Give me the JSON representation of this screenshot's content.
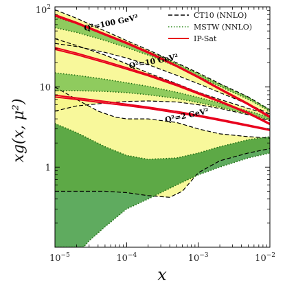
{
  "chart_data": {
    "type": "line",
    "title": "",
    "xlabel": "x",
    "ylabel": "xg(x, μ²)",
    "x_scale": "log",
    "y_scale": "log",
    "xlim": [
      1e-05,
      0.01
    ],
    "ylim": [
      0.1,
      100
    ],
    "x_ticks": [
      {
        "value": 1e-05,
        "base": "10",
        "exp": "−5"
      },
      {
        "value": 0.0001,
        "base": "10",
        "exp": "−4"
      },
      {
        "value": 0.001,
        "base": "10",
        "exp": "−3"
      },
      {
        "value": 0.01,
        "base": "10",
        "exp": "−2"
      }
    ],
    "y_ticks": [
      {
        "value": 1,
        "label": "1"
      },
      {
        "value": 10,
        "label": "10"
      },
      {
        "value": 100,
        "label": "10",
        "exp": "2"
      }
    ],
    "grid": false,
    "legend_position": "top-right",
    "legend": [
      {
        "label": "CT10 (NNLO)",
        "style": "dashed",
        "color": "#000000"
      },
      {
        "label": "MSTW (NNLO)",
        "style": "dotted",
        "color": "#2e8b1e"
      },
      {
        "label": "IP-Sat",
        "style": "solid",
        "color": "#e8001c"
      }
    ],
    "annotations": [
      {
        "text": "Q²=100 GeV²",
        "x": 2.6e-05,
        "y": 50
      },
      {
        "text": "Q²=10 GeV²",
        "x": 0.00011,
        "y": 17
      },
      {
        "text": "Q²=2 GeV²",
        "x": 0.00035,
        "y": 3.6
      }
    ],
    "colors": {
      "ct10_band": "#f7f78a",
      "mstw_band": "#6cbc4a",
      "mstw_band_low": "#2a8f2a",
      "ipsat": "#e8001c"
    },
    "series": [
      {
        "label_ref": "Q²=100 GeV²",
        "ct10_upper": [
          [
            1e-05,
            92
          ],
          [
            2e-05,
            72
          ],
          [
            5e-05,
            50
          ],
          [
            0.0001,
            38
          ],
          [
            0.0002,
            29
          ],
          [
            0.0005,
            20
          ],
          [
            0.001,
            15
          ],
          [
            0.002,
            11
          ],
          [
            0.005,
            7.5
          ],
          [
            0.01,
            5.2
          ]
        ],
        "ct10_lower": [
          [
            1e-05,
            35
          ],
          [
            2e-05,
            32
          ],
          [
            5e-05,
            27
          ],
          [
            0.0001,
            23
          ],
          [
            0.0002,
            19
          ],
          [
            0.0005,
            14
          ],
          [
            0.001,
            11
          ],
          [
            0.002,
            8.5
          ],
          [
            0.005,
            6.1
          ],
          [
            0.01,
            4.6
          ]
        ],
        "mstw_upper": [
          [
            1e-05,
            75
          ],
          [
            2e-05,
            62
          ],
          [
            5e-05,
            46
          ],
          [
            0.0001,
            36
          ],
          [
            0.0002,
            28
          ],
          [
            0.0005,
            19.5
          ],
          [
            0.001,
            14.6
          ],
          [
            0.002,
            10.8
          ],
          [
            0.005,
            7.4
          ],
          [
            0.01,
            5.2
          ]
        ],
        "mstw_lower": [
          [
            1e-05,
            55
          ],
          [
            2e-05,
            48
          ],
          [
            5e-05,
            38
          ],
          [
            0.0001,
            31
          ],
          [
            0.0002,
            25
          ],
          [
            0.0005,
            18
          ],
          [
            0.001,
            13.6
          ],
          [
            0.002,
            10.2
          ],
          [
            0.005,
            7.0
          ],
          [
            0.01,
            5.0
          ]
        ],
        "ipsat_curves": [
          [
            [
              1e-05,
              80
            ],
            [
              2e-05,
              64
            ],
            [
              5e-05,
              46
            ],
            [
              0.0001,
              36
            ],
            [
              0.0002,
              27.5
            ],
            [
              0.0005,
              18.5
            ],
            [
              0.001,
              13.5
            ],
            [
              0.002,
              9.6
            ],
            [
              0.005,
              6.2
            ],
            [
              0.01,
              4.3
            ]
          ],
          [
            [
              1e-05,
              77
            ],
            [
              2e-05,
              62
            ],
            [
              5e-05,
              44.5
            ],
            [
              0.0001,
              34.8
            ],
            [
              0.0002,
              26.6
            ],
            [
              0.0005,
              18
            ],
            [
              0.001,
              13.1
            ],
            [
              0.002,
              9.3
            ],
            [
              0.005,
              6.0
            ],
            [
              0.01,
              4.15
            ]
          ]
        ]
      },
      {
        "label_ref": "Q²=10 GeV²",
        "ct10_upper": [
          [
            1e-05,
            40
          ],
          [
            2e-05,
            33
          ],
          [
            5e-05,
            25
          ],
          [
            0.0001,
            19.5
          ],
          [
            0.0002,
            15
          ],
          [
            0.0005,
            11
          ],
          [
            0.001,
            8.6
          ],
          [
            0.002,
            7.0
          ],
          [
            0.005,
            5.4
          ],
          [
            0.01,
            4.5
          ]
        ],
        "ct10_lower": [
          [
            1e-05,
            5
          ],
          [
            2e-05,
            5.8
          ],
          [
            5e-05,
            6.3
          ],
          [
            0.0001,
            6.6
          ],
          [
            0.0002,
            6.7
          ],
          [
            0.0005,
            6.5
          ],
          [
            0.001,
            6.0
          ],
          [
            0.002,
            5.4
          ],
          [
            0.005,
            4.5
          ],
          [
            0.01,
            3.8
          ]
        ],
        "mstw_upper": [
          [
            1e-05,
            15
          ],
          [
            2e-05,
            14
          ],
          [
            5e-05,
            12.5
          ],
          [
            0.0001,
            11.3
          ],
          [
            0.0002,
            10.2
          ],
          [
            0.0005,
            8.6
          ],
          [
            0.001,
            7.4
          ],
          [
            0.002,
            6.3
          ],
          [
            0.005,
            5.0
          ],
          [
            0.01,
            4.2
          ]
        ],
        "mstw_lower": [
          [
            1e-05,
            9
          ],
          [
            2e-05,
            9
          ],
          [
            5e-05,
            8.8
          ],
          [
            0.0001,
            8.5
          ],
          [
            0.0002,
            8.0
          ],
          [
            0.0005,
            7.2
          ],
          [
            0.001,
            6.4
          ],
          [
            0.002,
            5.6
          ],
          [
            0.005,
            4.6
          ],
          [
            0.01,
            3.9
          ]
        ],
        "ipsat_curves": [
          [
            [
              1e-05,
              31
            ],
            [
              2e-05,
              26.5
            ],
            [
              5e-05,
              21
            ],
            [
              0.0001,
              17.4
            ],
            [
              0.0002,
              14.3
            ],
            [
              0.0005,
              10.8
            ],
            [
              0.001,
              8.5
            ],
            [
              0.002,
              6.7
            ],
            [
              0.005,
              4.8
            ],
            [
              0.01,
              3.5
            ]
          ],
          [
            [
              1e-05,
              29.5
            ],
            [
              2e-05,
              25.3
            ],
            [
              5e-05,
              20.1
            ],
            [
              0.0001,
              16.7
            ],
            [
              0.0002,
              13.8
            ],
            [
              0.0005,
              10.4
            ],
            [
              0.001,
              8.2
            ],
            [
              0.002,
              6.5
            ],
            [
              0.005,
              4.65
            ],
            [
              0.01,
              3.4
            ]
          ]
        ]
      },
      {
        "label_ref": "Q²=2 GeV²",
        "ct10_upper": [
          [
            1e-05,
            10
          ],
          [
            2e-05,
            7
          ],
          [
            4e-05,
            5
          ],
          [
            7e-05,
            4.2
          ],
          [
            0.0001,
            4.0
          ],
          [
            0.0002,
            4.0
          ],
          [
            0.0005,
            3.6
          ],
          [
            0.001,
            3.0
          ],
          [
            0.002,
            2.6
          ],
          [
            0.005,
            2.4
          ],
          [
            0.01,
            2.3
          ]
        ],
        "ct10_lower": [
          [
            1e-05,
            0.5
          ],
          [
            2e-05,
            0.5
          ],
          [
            5e-05,
            0.5
          ],
          [
            0.0001,
            0.48
          ],
          [
            0.0002,
            0.44
          ],
          [
            0.0004,
            0.42
          ],
          [
            0.0006,
            0.5
          ],
          [
            0.001,
            0.85
          ],
          [
            0.002,
            1.2
          ],
          [
            0.005,
            1.5
          ],
          [
            0.01,
            1.7
          ]
        ],
        "mstw_upper": [
          [
            1e-05,
            3.5
          ],
          [
            2e-05,
            2.7
          ],
          [
            5e-05,
            1.8
          ],
          [
            0.0001,
            1.4
          ],
          [
            0.0002,
            1.25
          ],
          [
            0.0005,
            1.3
          ],
          [
            0.001,
            1.5
          ],
          [
            0.002,
            1.8
          ],
          [
            0.005,
            2.2
          ],
          [
            0.01,
            2.4
          ]
        ],
        "mstw_lower": [
          [
            1e-05,
            0.1
          ],
          [
            2e-05,
            0.1
          ],
          [
            2.5e-05,
            0.1
          ],
          [
            3e-05,
            0.12
          ],
          [
            5e-05,
            0.18
          ],
          [
            0.0001,
            0.3
          ],
          [
            0.0002,
            0.4
          ],
          [
            0.0005,
            0.6
          ],
          [
            0.001,
            0.8
          ],
          [
            0.002,
            1.0
          ],
          [
            0.005,
            1.3
          ],
          [
            0.01,
            1.5
          ]
        ],
        "ipsat_curves": [
          [
            [
              1e-05,
              7.9
            ],
            [
              2e-05,
              7.3
            ],
            [
              5e-05,
              6.6
            ],
            [
              0.0001,
              6.1
            ],
            [
              0.0002,
              5.6
            ],
            [
              0.0005,
              4.95
            ],
            [
              0.001,
              4.45
            ],
            [
              0.002,
              3.95
            ],
            [
              0.005,
              3.35
            ],
            [
              0.01,
              2.95
            ]
          ],
          [
            [
              1e-05,
              7.5
            ],
            [
              2e-05,
              7.0
            ],
            [
              5e-05,
              6.3
            ],
            [
              0.0001,
              5.85
            ],
            [
              0.0002,
              5.4
            ],
            [
              0.0005,
              4.75
            ],
            [
              0.001,
              4.3
            ],
            [
              0.002,
              3.82
            ],
            [
              0.005,
              3.25
            ],
            [
              0.01,
              2.87
            ]
          ]
        ]
      }
    ]
  }
}
